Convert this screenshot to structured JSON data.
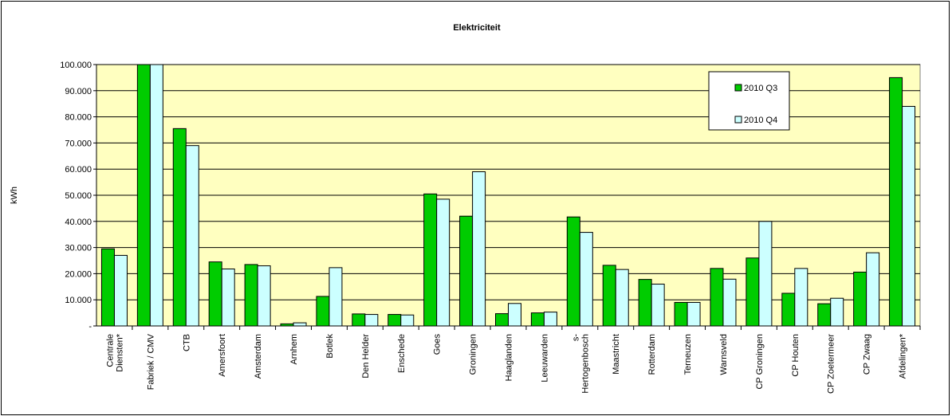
{
  "chart_data": {
    "type": "bar",
    "title": "Elektriciteit",
    "xlabel": "",
    "ylabel": "kWh",
    "ylim": [
      0,
      100000
    ],
    "yticks": [
      {
        "value": 0,
        "label": "-"
      },
      {
        "value": 10000,
        "label": "10.000"
      },
      {
        "value": 20000,
        "label": "20.000"
      },
      {
        "value": 30000,
        "label": "30.000"
      },
      {
        "value": 40000,
        "label": "40.000"
      },
      {
        "value": 50000,
        "label": "50.000"
      },
      {
        "value": 60000,
        "label": "60.000"
      },
      {
        "value": 70000,
        "label": "70.000"
      },
      {
        "value": 80000,
        "label": "80.000"
      },
      {
        "value": 90000,
        "label": "90.000"
      },
      {
        "value": 100000,
        "label": "100.000"
      }
    ],
    "grid": true,
    "legend_position": "top-right",
    "plot_background": "#ffffc0",
    "categories": [
      "Centrale Diensten*",
      "Fabriek / CMV",
      "CTB",
      "Amersfoort",
      "Amsterdam",
      "Arnhem",
      "Botlek",
      "Den Helder",
      "Enschede",
      "Goes",
      "Groningen",
      "Haaglanden",
      "Leeuwarden",
      "s-Hertogenbosch",
      "Maastricht",
      "Rotterdam",
      "Terneuzen",
      "Warnsveld",
      "CP Groningen",
      "CP Houten",
      "CP Zoetermeer",
      "CP Zwaag",
      "Afdelingen*"
    ],
    "category_lines": [
      [
        "Centrale",
        "Diensten*"
      ],
      [
        "Fabriek / CMV"
      ],
      [
        "CTB"
      ],
      [
        "Amersfoort"
      ],
      [
        "Amsterdam"
      ],
      [
        "Arnhem"
      ],
      [
        "Botlek"
      ],
      [
        "Den Helder"
      ],
      [
        "Enschede"
      ],
      [
        "Goes"
      ],
      [
        "Groningen"
      ],
      [
        "Haaglanden"
      ],
      [
        "Leeuwarden"
      ],
      [
        "s-",
        "Hertogenbosch"
      ],
      [
        "Maastricht"
      ],
      [
        "Rotterdam"
      ],
      [
        "Terneuzen"
      ],
      [
        "Warnsveld"
      ],
      [
        "CP Groningen"
      ],
      [
        "CP Houten"
      ],
      [
        "CP Zoetermeer"
      ],
      [
        "CP Zwaag"
      ],
      [
        "Afdelingen*"
      ]
    ],
    "series": [
      {
        "name": "2010 Q3",
        "color": "#00cc00",
        "values": [
          29500,
          100000,
          75500,
          24500,
          23500,
          800,
          11300,
          4600,
          4400,
          50500,
          42000,
          4700,
          5000,
          41700,
          23200,
          17800,
          9000,
          22000,
          26000,
          12500,
          8500,
          20600,
          95000
        ]
      },
      {
        "name": "2010 Q4",
        "color": "#ccffff",
        "values": [
          27000,
          100000,
          69000,
          21800,
          23000,
          1200,
          22300,
          4400,
          4200,
          48500,
          59000,
          8600,
          5300,
          35800,
          21600,
          16000,
          9000,
          17900,
          40000,
          22000,
          10600,
          28000,
          84000
        ]
      }
    ]
  }
}
